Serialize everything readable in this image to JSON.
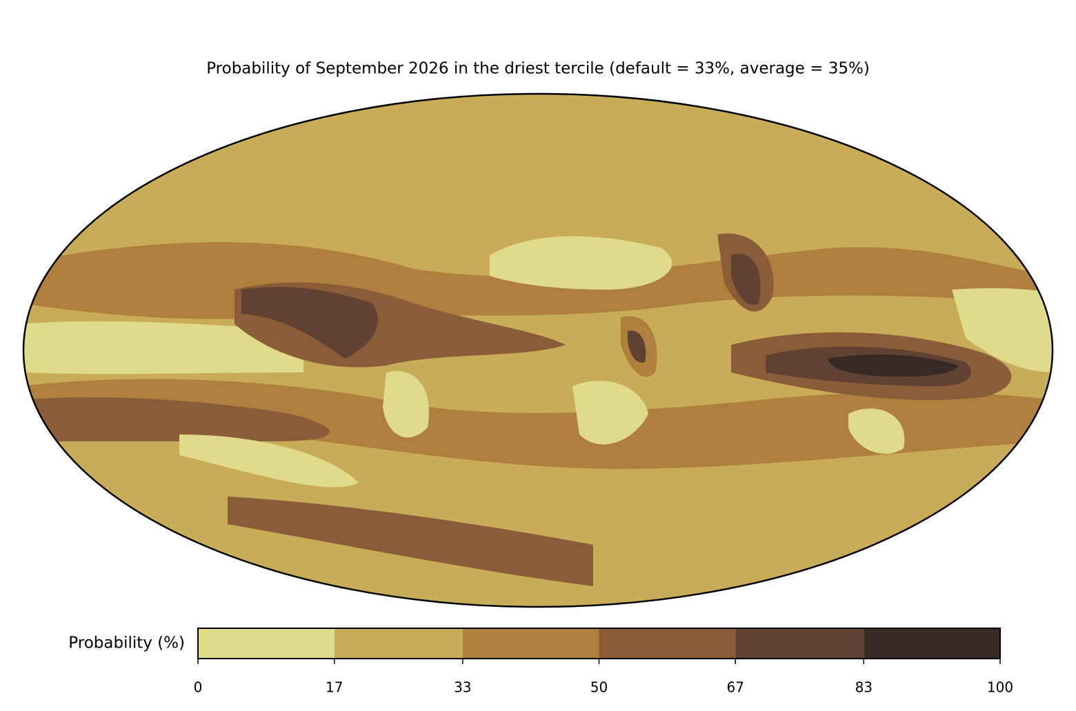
{
  "title": "Probability of September 2026 in the driest tercile (default = 33%, average = 35%)",
  "colorbar": {
    "label": "Probability (%)",
    "ticks": [
      0,
      17,
      33,
      50,
      67,
      83,
      100
    ],
    "colors": [
      "#dfdb8b",
      "#c9ac58",
      "#ae7f3d",
      "#8a5c37",
      "#5f4231",
      "#372924"
    ]
  }
}
